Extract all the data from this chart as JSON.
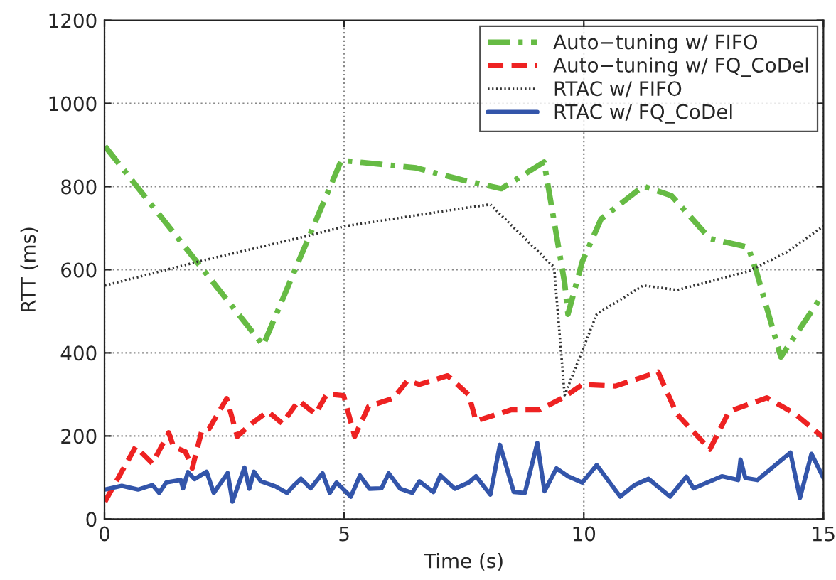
{
  "chart_data": {
    "type": "line",
    "xlabel": "Time (s)",
    "ylabel": "RTT (ms)",
    "xlim": [
      0,
      15
    ],
    "ylim": [
      0,
      1200
    ],
    "xticks": [
      0,
      5,
      10,
      15
    ],
    "yticks": [
      0,
      200,
      400,
      600,
      800,
      1000,
      1200
    ],
    "grid": true,
    "legend": "top right",
    "marker": "none",
    "series": [
      {
        "name": "Auto−tuning w/ FIFO",
        "color": "#66bb44",
        "line_style": "dashdot",
        "x": [
          0.01,
          3.31,
          4.94,
          6.5,
          7.5,
          8.28,
          9.17,
          9.6,
          9.67,
          9.97,
          10.36,
          11.24,
          11.83,
          12.63,
          13.43,
          13.6,
          14.11,
          14.91,
          15
        ],
        "values": [
          897,
          418,
          863,
          845,
          815,
          795,
          859,
          568,
          493,
          620,
          722,
          801,
          778,
          675,
          654,
          596,
          390,
          527,
          541
        ]
      },
      {
        "name": "Auto−tuning w/ FQ_CoDel",
        "color": "#ee2222",
        "line_style": "dashed",
        "x": [
          0.01,
          0.65,
          1.0,
          1.34,
          1.44,
          1.69,
          1.83,
          2.03,
          2.18,
          2.55,
          2.77,
          3.07,
          3.41,
          3.71,
          4.05,
          4.4,
          4.64,
          4.99,
          5.22,
          5.51,
          6.03,
          6.32,
          6.57,
          7.16,
          7.6,
          7.75,
          8.49,
          9.08,
          9.58,
          9.97,
          10.66,
          11.55,
          11.94,
          12.63,
          13.03,
          13.82,
          14.41,
          15
        ],
        "values": [
          42,
          174,
          134,
          208,
          174,
          162,
          122,
          213,
          217,
          290,
          199,
          230,
          259,
          230,
          285,
          253,
          301,
          297,
          199,
          271,
          291,
          333,
          324,
          345,
          299,
          236,
          263,
          263,
          293,
          324,
          320,
          354,
          253,
          168,
          259,
          292,
          253,
          196
        ]
      },
      {
        "name": "RTAC w/ FIFO",
        "color": "#333333",
        "line_style": "dotted",
        "x": [
          0.01,
          1.98,
          4.26,
          5.03,
          7.6,
          8.05,
          9.38,
          9.6,
          10.27,
          11.24,
          11.95,
          13.43,
          14.2,
          15
        ],
        "values": [
          562,
          620,
          682,
          705,
          750,
          757,
          606,
          298,
          493,
          562,
          551,
          596,
          640,
          705
        ]
      },
      {
        "name": "RTAC w/ FQ_CoDel",
        "color": "#3355aa",
        "line_style": "solid",
        "x": [
          0.01,
          0.36,
          0.7,
          1.0,
          1.14,
          1.29,
          1.59,
          1.64,
          1.74,
          1.88,
          2.13,
          2.28,
          2.57,
          2.67,
          2.92,
          3.02,
          3.12,
          3.26,
          3.56,
          3.81,
          3.96,
          4.1,
          4.3,
          4.55,
          4.7,
          4.84,
          5.14,
          5.33,
          5.53,
          5.78,
          5.93,
          6.17,
          6.42,
          6.57,
          6.86,
          7.01,
          7.31,
          7.6,
          7.75,
          8.05,
          8.25,
          8.54,
          8.77,
          9.03,
          9.18,
          9.43,
          9.67,
          9.97,
          10.27,
          10.76,
          11.06,
          11.35,
          11.8,
          12.14,
          12.29,
          12.88,
          13.22,
          13.27,
          13.37,
          13.62,
          14.31,
          14.51,
          14.75,
          15
        ],
        "values": [
          71,
          80,
          71,
          82,
          63,
          88,
          94,
          74,
          113,
          96,
          114,
          63,
          111,
          42,
          124,
          73,
          114,
          91,
          79,
          63,
          82,
          97,
          74,
          110,
          63,
          88,
          54,
          105,
          73,
          74,
          110,
          73,
          63,
          91,
          65,
          105,
          73,
          88,
          103,
          59,
          179,
          65,
          63,
          183,
          67,
          122,
          103,
          88,
          130,
          54,
          82,
          97,
          54,
          102,
          74,
          103,
          94,
          143,
          99,
          94,
          160,
          51,
          157,
          99
        ]
      }
    ]
  }
}
